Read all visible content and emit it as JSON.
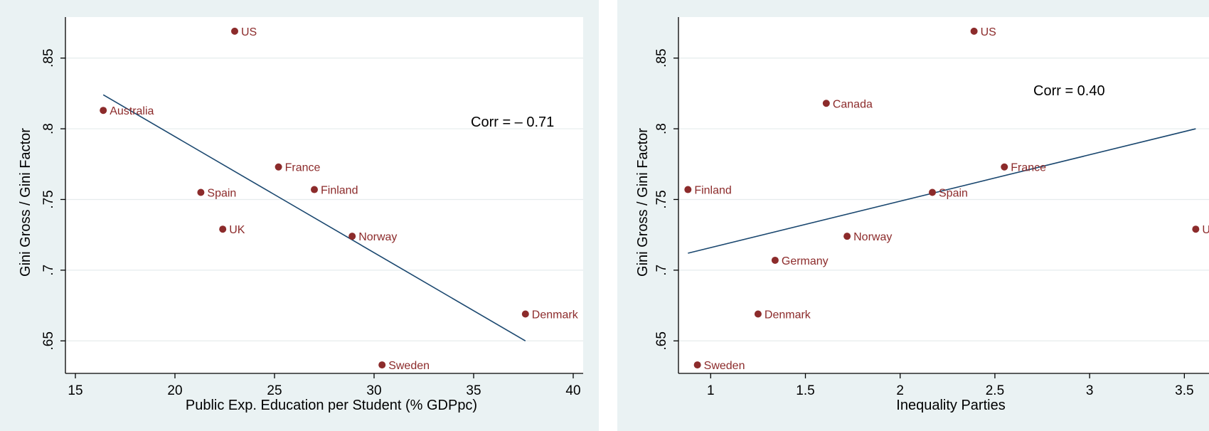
{
  "colors": {
    "panel_bg": "#eaf2f3",
    "plot_bg": "#ffffff",
    "grid": "#e6eced",
    "point": "#8c2b2b",
    "fit_line": "#1a476f",
    "axis": "#000000"
  },
  "chart_data": [
    {
      "type": "scatter",
      "xlabel": "Public Exp. Education per Student (% GDPpc)",
      "ylabel": "Gini Gross / Gini Factor",
      "xlim": [
        14.5,
        40.5
      ],
      "ylim": [
        0.627,
        0.879
      ],
      "xticks": [
        15,
        20,
        25,
        30,
        35,
        40
      ],
      "xtick_labels": [
        "15",
        "20",
        "25",
        "30",
        "35",
        "40"
      ],
      "yticks": [
        0.65,
        0.7,
        0.75,
        0.8,
        0.85
      ],
      "ytick_labels": [
        ".65",
        ".7",
        ".75",
        ".8",
        ".85"
      ],
      "grid": true,
      "annotation": "Corr = – 0.71",
      "points": [
        {
          "label": "US",
          "x": 23.0,
          "y": 0.869
        },
        {
          "label": "Australia",
          "x": 16.4,
          "y": 0.813
        },
        {
          "label": "France",
          "x": 25.2,
          "y": 0.773
        },
        {
          "label": "Finland",
          "x": 27.0,
          "y": 0.757
        },
        {
          "label": "Spain",
          "x": 21.3,
          "y": 0.755
        },
        {
          "label": "UK",
          "x": 22.4,
          "y": 0.729
        },
        {
          "label": "Norway",
          "x": 28.9,
          "y": 0.724
        },
        {
          "label": "Denmark",
          "x": 37.6,
          "y": 0.669
        },
        {
          "label": "Sweden",
          "x": 30.4,
          "y": 0.633
        }
      ],
      "fit_line": {
        "x": [
          16.4,
          37.6
        ],
        "y": [
          0.824,
          0.65
        ]
      }
    },
    {
      "type": "scatter",
      "xlabel": "Inequality Parties",
      "ylabel": "Gini Gross / Gini Factor",
      "xlim": [
        0.83,
        3.63
      ],
      "ylim": [
        0.627,
        0.879
      ],
      "xticks": [
        1,
        1.5,
        2,
        2.5,
        3,
        3.5
      ],
      "xtick_labels": [
        "1",
        "1.5",
        "2",
        "2.5",
        "3",
        "3.5"
      ],
      "yticks": [
        0.65,
        0.7,
        0.75,
        0.8,
        0.85
      ],
      "ytick_labels": [
        ".65",
        ".7",
        ".75",
        ".8",
        ".85"
      ],
      "grid": true,
      "annotation": "Corr = 0.40",
      "points": [
        {
          "label": "US",
          "x": 2.39,
          "y": 0.869
        },
        {
          "label": "Canada",
          "x": 1.61,
          "y": 0.818
        },
        {
          "label": "France",
          "x": 2.55,
          "y": 0.773
        },
        {
          "label": "Finland",
          "x": 0.88,
          "y": 0.757
        },
        {
          "label": "Spain",
          "x": 2.17,
          "y": 0.755
        },
        {
          "label": "UK",
          "x": 3.56,
          "y": 0.729
        },
        {
          "label": "Norway",
          "x": 1.72,
          "y": 0.724
        },
        {
          "label": "Germany",
          "x": 1.34,
          "y": 0.707
        },
        {
          "label": "Denmark",
          "x": 1.25,
          "y": 0.669
        },
        {
          "label": "Sweden",
          "x": 0.93,
          "y": 0.633
        }
      ],
      "fit_line": {
        "x": [
          0.88,
          3.56
        ],
        "y": [
          0.712,
          0.8
        ]
      }
    }
  ]
}
